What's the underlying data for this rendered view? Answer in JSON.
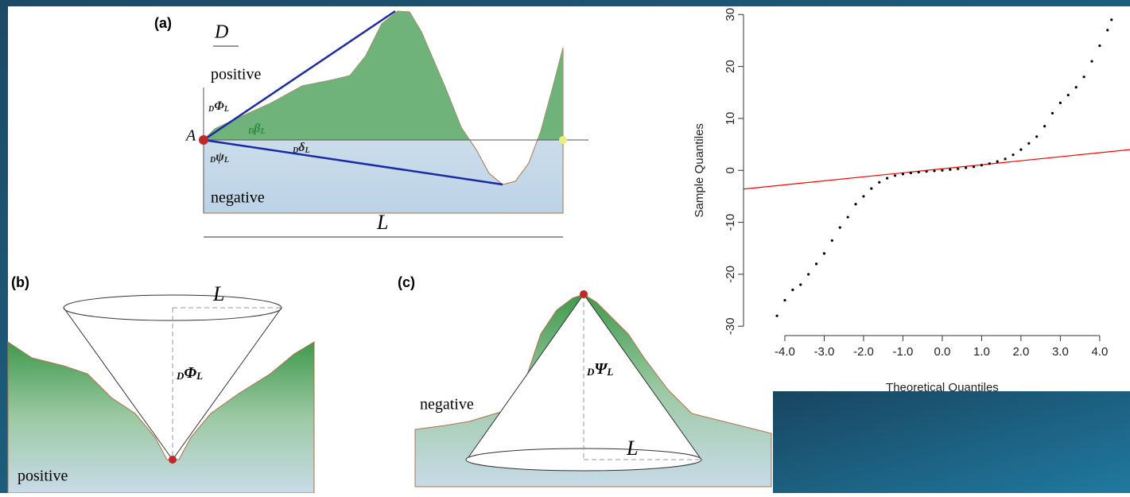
{
  "chart_data": {
    "type": "scatter",
    "x_label": "Theoretical Quantiles",
    "y_label": "Sample Quantiles",
    "xlim": [
      -5.05,
      4.77
    ],
    "ylim": [
      -31.8,
      32.8
    ],
    "xticks": [
      {
        "value": -4,
        "label": "-4.0"
      },
      {
        "value": -3,
        "label": "-3.0"
      },
      {
        "value": -2,
        "label": "-2.0"
      },
      {
        "value": -1,
        "label": "-1.0"
      },
      {
        "value": 0,
        "label": "0.0"
      },
      {
        "value": 1,
        "label": "1.0"
      },
      {
        "value": 2,
        "label": "2.0"
      },
      {
        "value": 3,
        "label": "3.0"
      },
      {
        "value": 4,
        "label": "4.0"
      }
    ],
    "yticks": [
      -30,
      -20,
      -10,
      0,
      10,
      20,
      30
    ],
    "color": "#000000",
    "x": [
      -4.2,
      -4.0,
      -3.8,
      -3.6,
      -3.4,
      -3.2,
      -3.0,
      -2.8,
      -2.6,
      -2.4,
      -2.2,
      -2.0,
      -1.8,
      -1.6,
      -1.4,
      -1.2,
      -1.0,
      -0.8,
      -0.6,
      -0.4,
      -0.2,
      0.0,
      0.2,
      0.4,
      0.6,
      0.8,
      1.0,
      1.2,
      1.4,
      1.6,
      1.8,
      2.0,
      2.2,
      2.4,
      2.6,
      2.8,
      3.0,
      3.2,
      3.4,
      3.6,
      3.8,
      4.0,
      4.2,
      4.3
    ],
    "values": [
      -28,
      -25,
      -23,
      -22,
      -20,
      -18,
      -16,
      -13.5,
      -11,
      -9,
      -6.5,
      -5,
      -3.5,
      -2.3,
      -1.5,
      -1.0,
      -0.7,
      -0.5,
      -0.35,
      -0.2,
      -0.1,
      0,
      0.15,
      0.3,
      0.5,
      0.7,
      1.0,
      1.3,
      1.7,
      2.2,
      3.0,
      4.0,
      5.2,
      6.5,
      8.5,
      11,
      13,
      14.5,
      16,
      18,
      21,
      24,
      27,
      29
    ],
    "reference_line": {
      "x": [
        -5.05,
        4.77
      ],
      "y": [
        -3.6,
        4.0
      ],
      "color": "#ff0000"
    }
  },
  "panel_a": {
    "label": "(a)",
    "direction": "D",
    "positive": "positive",
    "negative": "negative",
    "point": "A",
    "length": "L",
    "angles": [
      {
        "pre": "D",
        "sym": "Φ",
        "sub": "L"
      },
      {
        "pre": "D",
        "sym": "β",
        "sub": "L"
      },
      {
        "pre": "D",
        "sym": "δ",
        "sub": "L"
      },
      {
        "pre": "D",
        "sym": "ψ",
        "sub": "L"
      }
    ]
  },
  "panel_b": {
    "label": "(b)",
    "length": "L",
    "positive": "positive",
    "angle": {
      "pre": "D",
      "sym": "Φ",
      "sub": "L"
    }
  },
  "panel_c": {
    "label": "(c)",
    "length": "L",
    "negative": "negative",
    "angle": {
      "pre": "D",
      "sym": "Ψ",
      "sub": "L"
    }
  }
}
